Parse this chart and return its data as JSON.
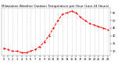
{
  "title": "Milwaukee Weather Outdoor Temperature per Hour (Last 24 Hours)",
  "hours": [
    0,
    1,
    2,
    3,
    4,
    5,
    6,
    7,
    8,
    9,
    10,
    11,
    12,
    13,
    14,
    15,
    16,
    17,
    18,
    19,
    20,
    21,
    22,
    23
  ],
  "temps": [
    32,
    31,
    30,
    30,
    29,
    29,
    30,
    31,
    33,
    36,
    40,
    45,
    50,
    54,
    55,
    56,
    55,
    52,
    50,
    48,
    47,
    46,
    45,
    44
  ],
  "line_color": "#ff0000",
  "marker": "o",
  "marker_size": 1.2,
  "line_width": 0.7,
  "bg_color": "#ffffff",
  "grid_color": "#999999",
  "ylim": [
    27,
    58
  ],
  "yticks": [
    30,
    35,
    40,
    45,
    50,
    55
  ],
  "title_fontsize": 3.0,
  "tick_fontsize": 2.5
}
